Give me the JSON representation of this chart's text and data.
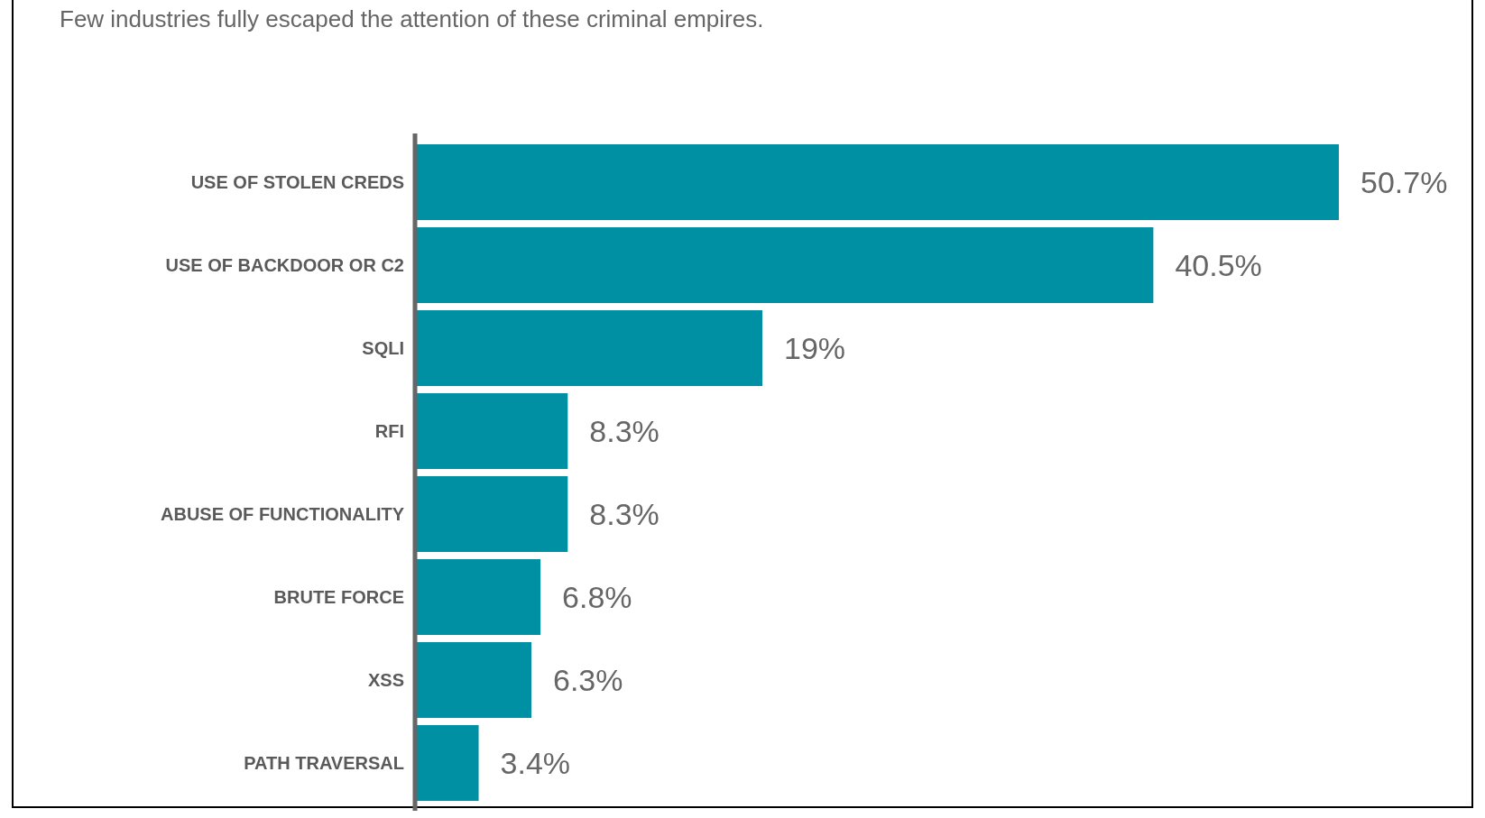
{
  "chart_data": {
    "type": "bar",
    "orientation": "horizontal",
    "categories": [
      "USE OF STOLEN CREDS",
      "USE OF BACKDOOR OR C2",
      "SQLI",
      "RFI",
      "ABUSE OF FUNCTIONALITY",
      "BRUTE FORCE",
      "XSS",
      "PATH TRAVERSAL"
    ],
    "values": [
      50.7,
      40.5,
      19,
      8.3,
      8.3,
      6.8,
      6.3,
      3.4
    ],
    "value_labels": [
      "50.7%",
      "40.5%",
      "19%",
      "8.3%",
      "8.3%",
      "6.8%",
      "6.3%",
      "3.4%"
    ],
    "color": "#0090a3",
    "annotations": [
      "Few industries fully escaped the attention of these criminal empires."
    ]
  }
}
